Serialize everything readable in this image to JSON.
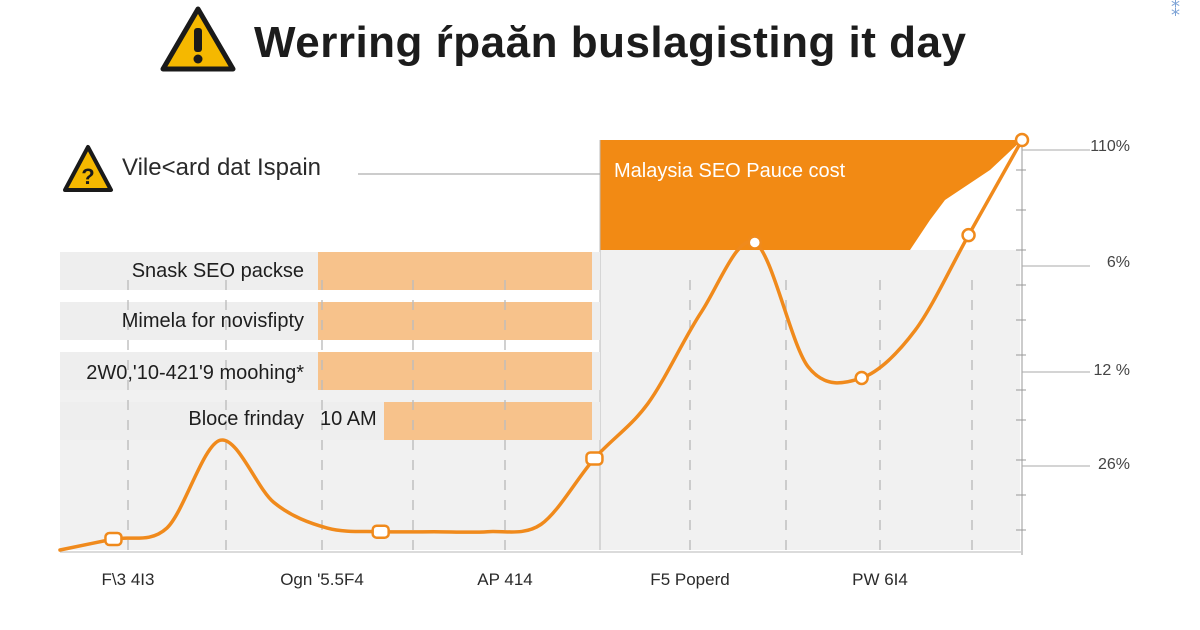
{
  "title": "Werring ŕpaăn buslagisting it day",
  "chart_data": {
    "type": "line",
    "subtitle": "Vile<ard dat Ispain",
    "highlight_label": "Malaysia SEO Pauce cost",
    "x_ticks": [
      "F\\3 4I3",
      "Ogn '5.5F4",
      "AP 414",
      "F5 Poperd",
      "PW 6I4"
    ],
    "y_ticks": [
      "110%",
      "6%",
      "12 %",
      "26%"
    ],
    "rows": [
      {
        "label": "Snask SEO packse",
        "value": ""
      },
      {
        "label": "Mimela for novisfipty",
        "value": ""
      },
      {
        "label": "2W0,'10-421'9 moohing*",
        "value": ""
      },
      {
        "label": "Bloce frinday",
        "value": "10 AM"
      }
    ],
    "series": [
      {
        "values": [
          0,
          3,
          6,
          30,
          13,
          6,
          5,
          5,
          5,
          7,
          25,
          40,
          65,
          84,
          50,
          47,
          60,
          86,
          112
        ]
      }
    ],
    "colors": {
      "line": "#f08a1c",
      "highlight": "#f28a14",
      "row_bar": "#f7c28b",
      "row_band": "#eeeeee",
      "area": "#f1f1f1"
    }
  }
}
